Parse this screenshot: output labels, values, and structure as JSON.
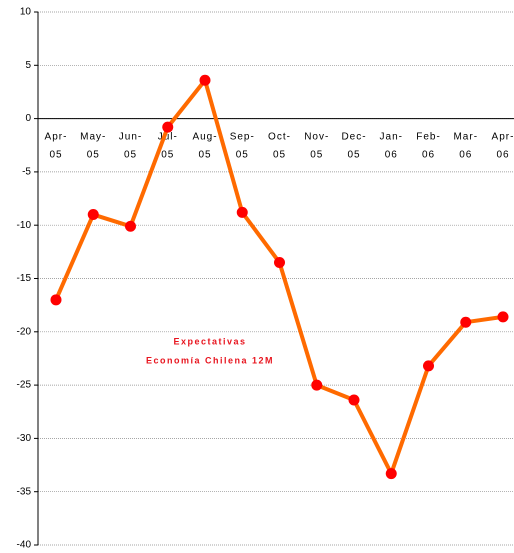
{
  "chart_data": {
    "type": "line",
    "categories": [
      "Apr-05",
      "May-05",
      "Jun-05",
      "Jul-05",
      "Aug-05",
      "Sep-05",
      "Oct-05",
      "Nov-05",
      "Dec-05",
      "Jan-06",
      "Feb-06",
      "Mar-06",
      "Apr-06"
    ],
    "series": [
      {
        "name": "Expectativas Economía Chilena 12M",
        "color": "#ff6a00",
        "marker_color": "#ff0000",
        "values": [
          -17,
          -9,
          -10.1,
          -0.8,
          3.6,
          -8.8,
          -13.5,
          -25,
          -26.4,
          -33.3,
          -23.2,
          -19.1,
          -18.6
        ]
      }
    ],
    "annotation": [
      "Expectativas",
      "Economía Chilena 12M"
    ],
    "ylim": [
      -40,
      10
    ],
    "yticks": [
      -40,
      -35,
      -30,
      -25,
      -20,
      -15,
      -10,
      -5,
      0,
      5,
      10
    ],
    "grid": true
  }
}
